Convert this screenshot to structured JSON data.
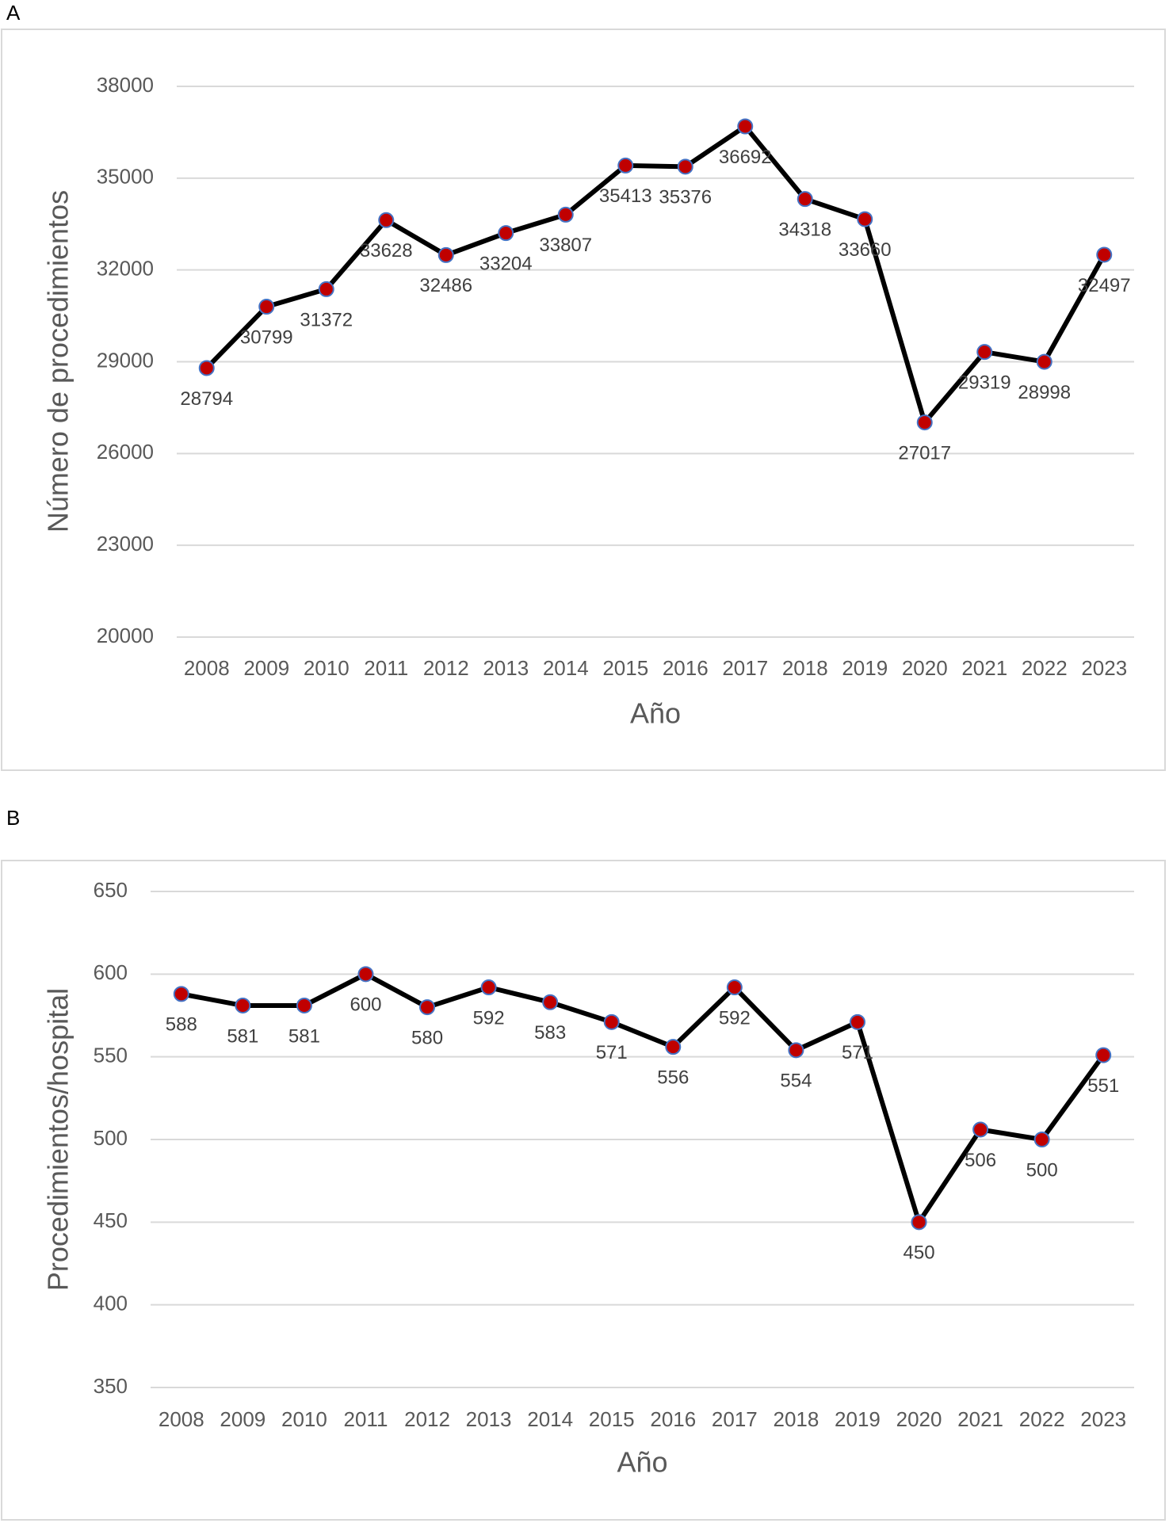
{
  "chart_data": [
    {
      "type": "line",
      "label": "A",
      "ylabel": "Número de procedimientos",
      "xlabel": "Año",
      "categories": [
        "2008",
        "2009",
        "2010",
        "2011",
        "2012",
        "2013",
        "2014",
        "2015",
        "2016",
        "2017",
        "2018",
        "2019",
        "2020",
        "2021",
        "2022",
        "2023"
      ],
      "values": [
        28794,
        30799,
        31372,
        33628,
        32486,
        33204,
        33807,
        35413,
        35376,
        36692,
        34318,
        33660,
        27017,
        29319,
        28998,
        32497
      ],
      "color": "#000000",
      "marker_color": "#c00000",
      "marker_edge_color": "#4472c4",
      "ylim": [
        20000,
        38000
      ],
      "yticks": [
        20000,
        23000,
        26000,
        29000,
        32000,
        35000,
        38000
      ],
      "grid": true
    },
    {
      "type": "line",
      "label": "B",
      "ylabel": "Procedimientos/hospital",
      "xlabel": "Año",
      "categories": [
        "2008",
        "2009",
        "2010",
        "2011",
        "2012",
        "2013",
        "2014",
        "2015",
        "2016",
        "2017",
        "2018",
        "2019",
        "2020",
        "2021",
        "2022",
        "2023"
      ],
      "values": [
        588,
        581,
        581,
        600,
        580,
        592,
        583,
        571,
        556,
        592,
        554,
        571,
        450,
        506,
        500,
        551
      ],
      "color": "#000000",
      "marker_color": "#c00000",
      "marker_edge_color": "#4472c4",
      "ylim": [
        350,
        650
      ],
      "yticks": [
        350,
        400,
        450,
        500,
        550,
        600,
        650
      ],
      "grid": true
    }
  ]
}
